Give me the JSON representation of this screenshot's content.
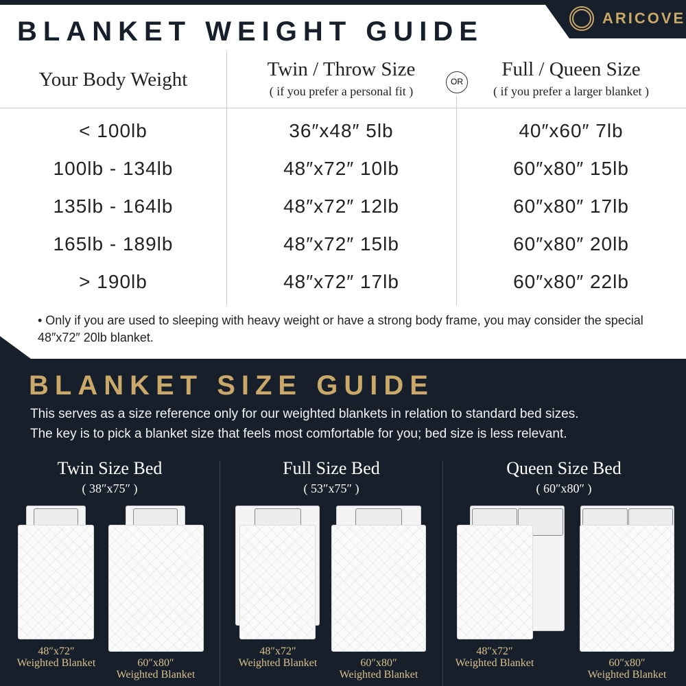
{
  "brand": "ARICOVE",
  "weight_guide": {
    "title": "BLANKET WEIGHT GUIDE",
    "col_weight": "Your Body Weight",
    "col_twin": "Twin / Throw Size",
    "col_twin_sub": "( if you prefer a personal fit )",
    "or": "OR",
    "col_full": "Full / Queen Size",
    "col_full_sub": "( if you prefer a larger blanket )",
    "rows": [
      {
        "weight": "< 100lb",
        "twin": "36″x48″ 5lb",
        "full": "40″x60″ 7lb"
      },
      {
        "weight": "100lb - 134lb",
        "twin": "48″x72″ 10lb",
        "full": "60″x80″ 15lb"
      },
      {
        "weight": "135lb - 164lb",
        "twin": "48″x72″ 12lb",
        "full": "60″x80″ 17lb"
      },
      {
        "weight": "165lb - 189lb",
        "twin": "48″x72″ 15lb",
        "full": "60″x80″ 20lb"
      },
      {
        "weight": "> 190lb",
        "twin": "48″x72″ 17lb",
        "full": "60″x80″ 22lb"
      }
    ],
    "note": "• Only if you are used to sleeping with heavy weight or have a strong body frame, you may consider the special 48″x72″ 20lb blanket."
  },
  "size_guide": {
    "title": "BLANKET SIZE GUIDE",
    "line1": "This serves as a size reference only for our weighted blankets in relation to standard bed sizes.",
    "line2": "The key is to pick a blanket size that feels most comfortable for you; bed size is less relevant.",
    "beds": [
      {
        "name": "Twin Size Bed",
        "dims": "( 38″x75″ )"
      },
      {
        "name": "Full Size Bed",
        "dims": "( 53″x75″ )"
      },
      {
        "name": "Queen Size Bed",
        "dims": "( 60″x80″ )"
      }
    ],
    "small_blanket": {
      "size": "48″x72″",
      "label": "Weighted Blanket"
    },
    "large_blanket": {
      "size": "60″x80″",
      "label": "Weighted Blanket"
    }
  },
  "colors": {
    "navy": "#161f2a",
    "gold": "#c9a86a"
  }
}
